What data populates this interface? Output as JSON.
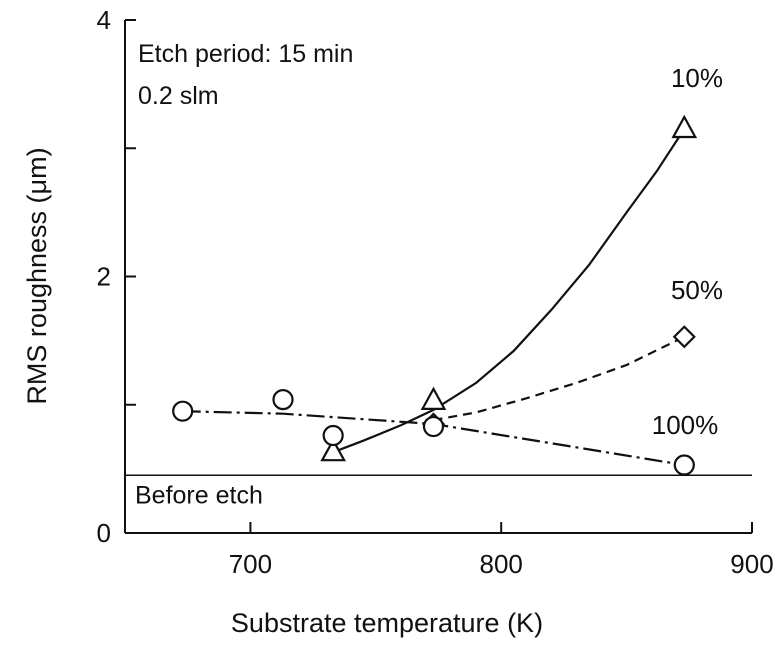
{
  "chart_data": {
    "type": "scatter",
    "xlabel": "Substrate temperature (K)",
    "ylabel": "RMS roughness (μm)",
    "xlim": [
      650,
      900
    ],
    "ylim": [
      0,
      4
    ],
    "xticks": [
      700,
      800,
      900
    ],
    "yticks": [
      0,
      2,
      4
    ],
    "yminor_ticks": [
      1,
      3
    ],
    "grid": false,
    "annotations": {
      "line1": "Etch period: 15 min",
      "line2": "0.2 slm"
    },
    "reference_line": {
      "label": "Before etch",
      "y": 0.45
    },
    "series": [
      {
        "name": "10%",
        "marker": "triangle",
        "line": "solid",
        "points": [
          [
            733,
            0.63
          ],
          [
            773,
            1.03
          ],
          [
            873,
            3.15
          ]
        ],
        "curve": [
          [
            733,
            0.63
          ],
          [
            745,
            0.72
          ],
          [
            760,
            0.84
          ],
          [
            773,
            0.96
          ],
          [
            790,
            1.17
          ],
          [
            805,
            1.42
          ],
          [
            820,
            1.74
          ],
          [
            835,
            2.09
          ],
          [
            850,
            2.5
          ],
          [
            862,
            2.82
          ],
          [
            873,
            3.15
          ]
        ]
      },
      {
        "name": "50%",
        "marker": "diamond",
        "line": "dashed",
        "points": [
          [
            773,
            0.85
          ],
          [
            873,
            1.53
          ]
        ],
        "curve": [
          [
            773,
            0.88
          ],
          [
            790,
            0.94
          ],
          [
            810,
            1.05
          ],
          [
            830,
            1.17
          ],
          [
            850,
            1.31
          ],
          [
            873,
            1.53
          ]
        ]
      },
      {
        "name": "100%",
        "marker": "circle",
        "line": "dash-dot",
        "points": [
          [
            673,
            0.95
          ],
          [
            713,
            1.04
          ],
          [
            733,
            0.76
          ],
          [
            773,
            0.83
          ],
          [
            873,
            0.53
          ]
        ],
        "curve": [
          [
            673,
            0.95
          ],
          [
            713,
            0.93
          ],
          [
            773,
            0.85
          ],
          [
            873,
            0.53
          ]
        ]
      }
    ]
  }
}
